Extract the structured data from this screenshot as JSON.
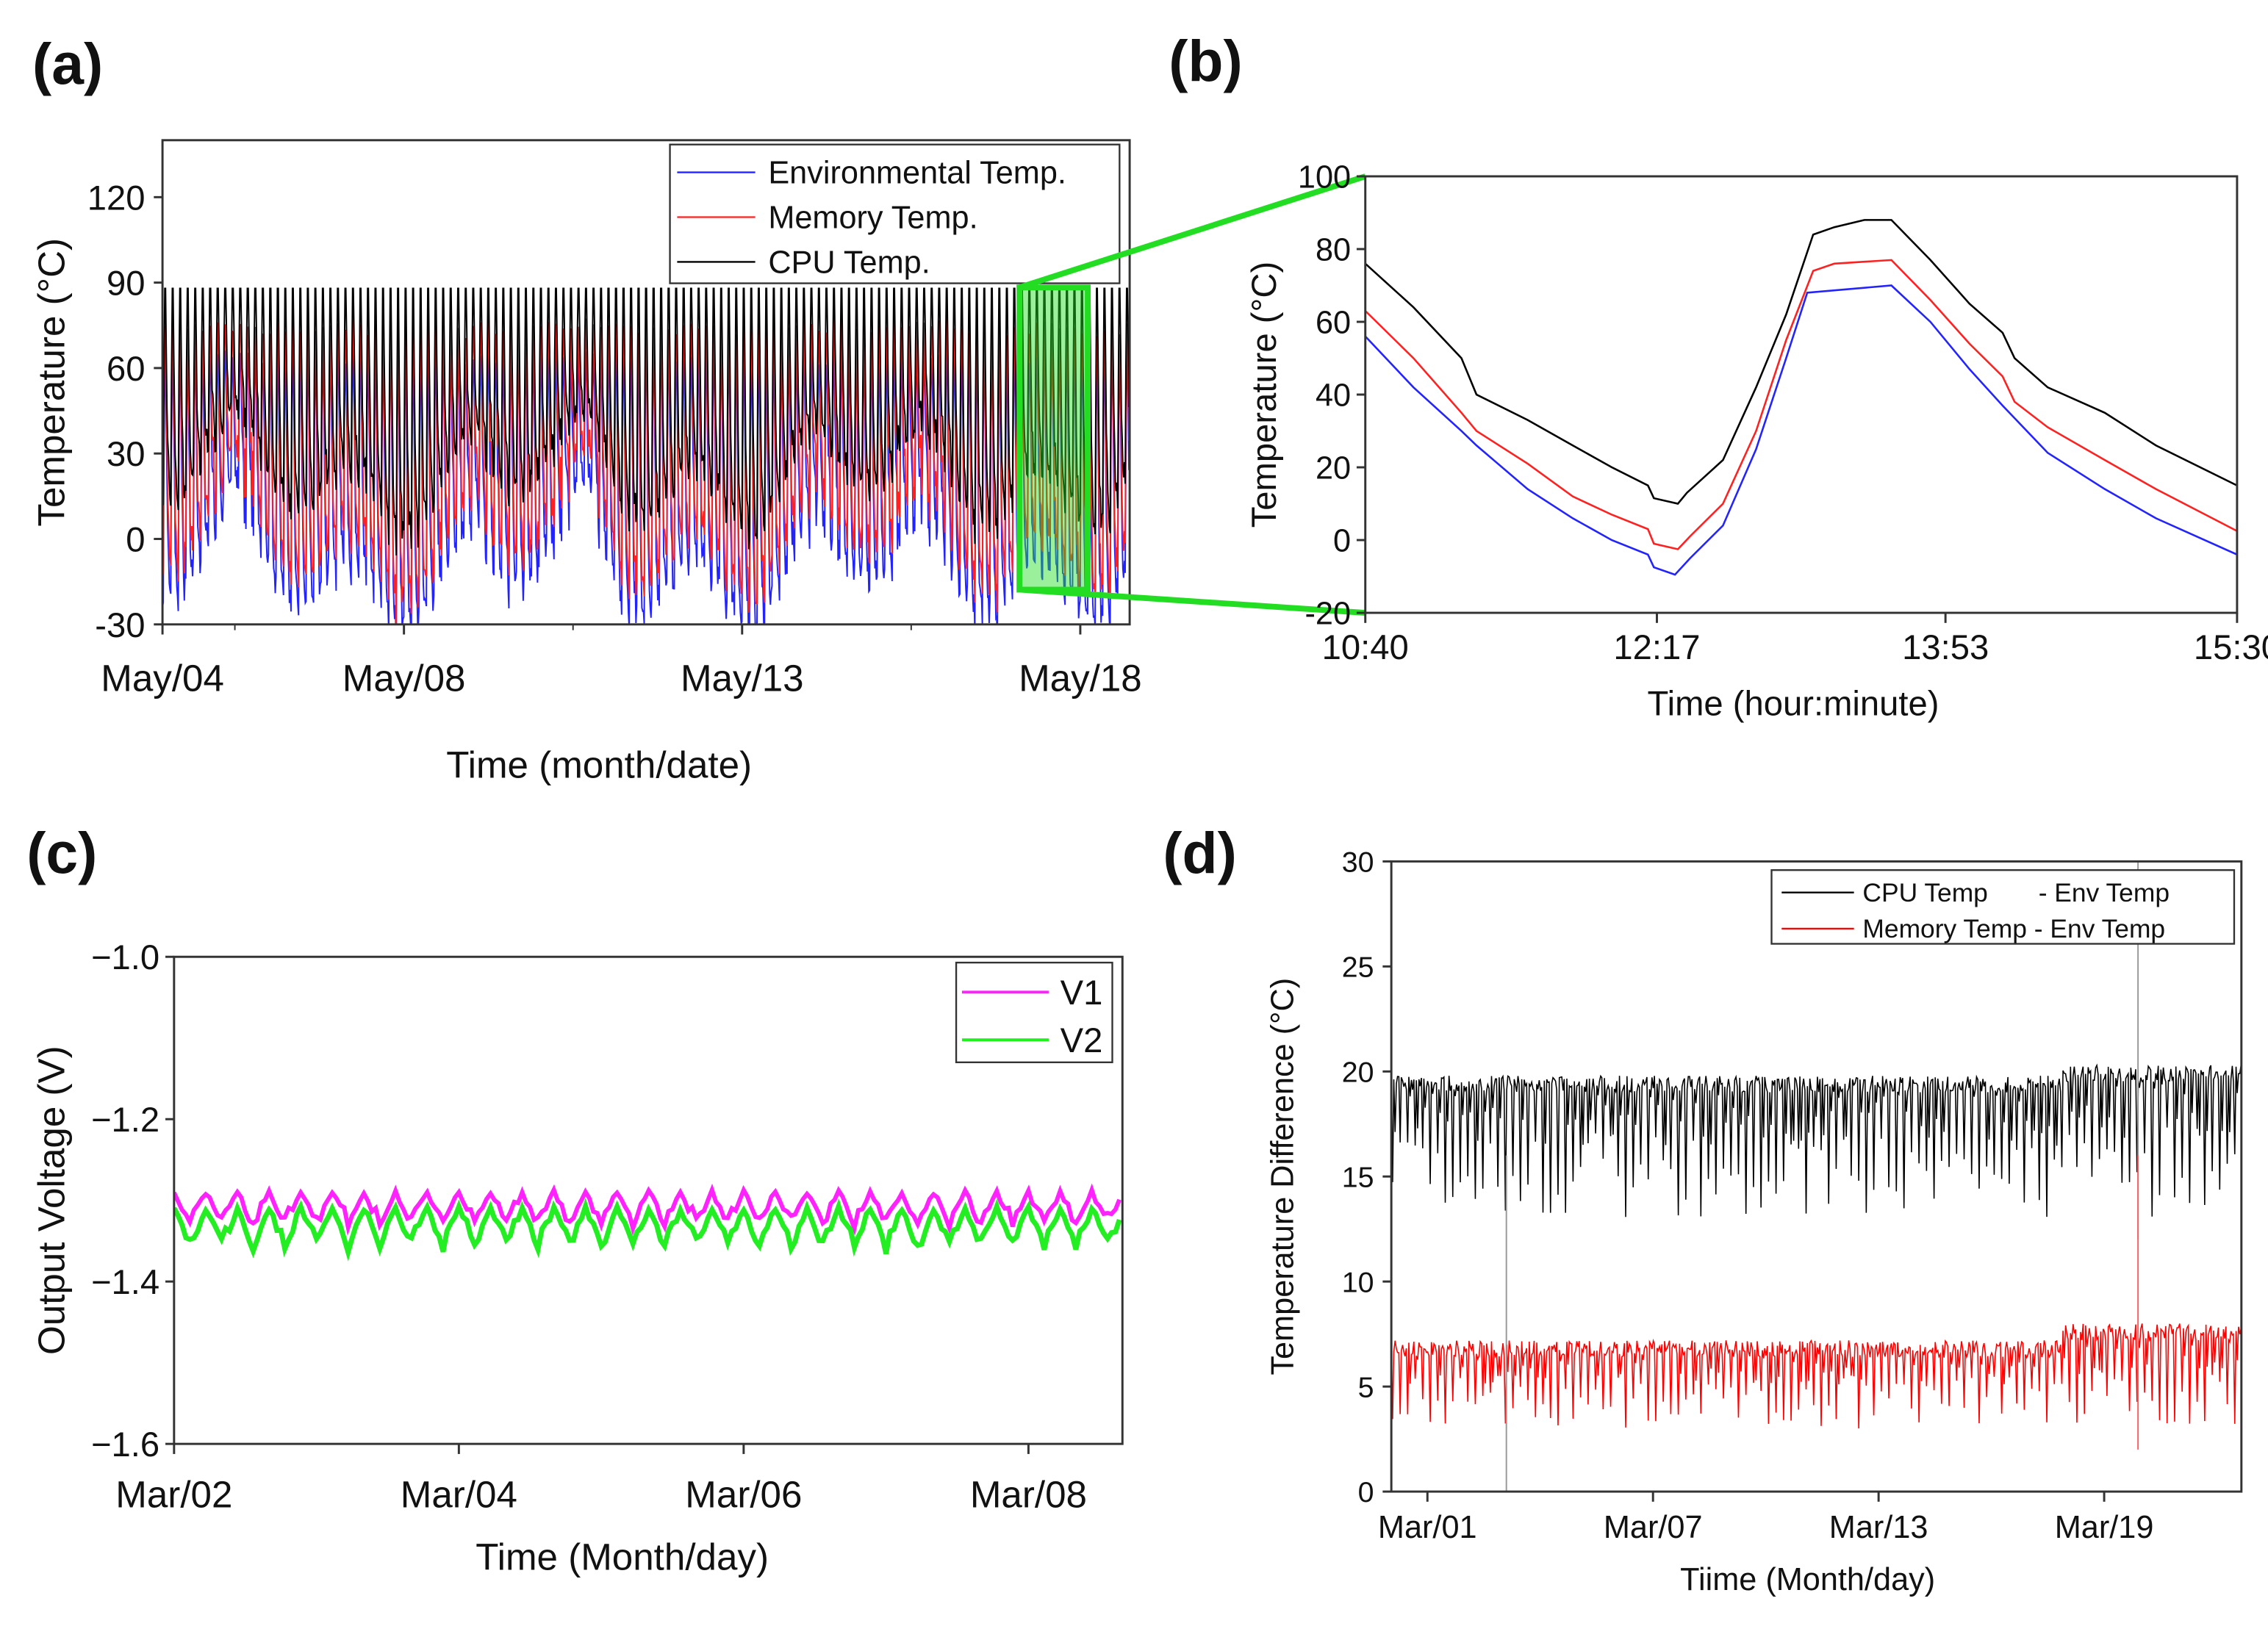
{
  "panel_labels": [
    "(a)",
    "(b)",
    "(c)",
    "(d)"
  ],
  "chart_data": [
    {
      "id": "a",
      "type": "line",
      "xlabel": "Time (month/date)",
      "ylabel": "Temperature (°C)",
      "xlim": [
        4.43,
        18.73
      ],
      "ylim": [
        -30,
        140
      ],
      "yticks": [
        -30,
        0,
        30,
        60,
        90,
        120
      ],
      "xticks": [
        {
          "v": 4.43,
          "label": "May/04"
        },
        {
          "v": 8,
          "label": "May/08"
        },
        {
          "v": 13,
          "label": "May/13"
        },
        {
          "v": 18,
          "label": "May/18"
        }
      ],
      "x_minor_ticks": [
        5.5,
        10.5,
        15.5
      ],
      "legend": "top-right",
      "series": [
        {
          "name": "Environmental Temp.",
          "color": "#2323ff",
          "peak": 70,
          "trough": -18
        },
        {
          "name": "Memory Temp.",
          "color": "#ff2020",
          "peak": 77,
          "trough": -5
        },
        {
          "name": "CPU Temp.",
          "color": "#000000",
          "peak": 88,
          "trough": 10
        }
      ],
      "cycles_per_day": 9,
      "highlight": {
        "x": [
          17.1,
          18.11
        ],
        "y": [
          -17.8,
          88.3
        ],
        "color": "#22dd22"
      }
    },
    {
      "id": "b",
      "type": "line",
      "xlabel": "Time (hour:minute)",
      "ylabel": "Temperature (°C)",
      "xlim": [
        640,
        930
      ],
      "ylim": [
        -20,
        100
      ],
      "yticks": [
        -20,
        0,
        20,
        40,
        60,
        80,
        100
      ],
      "xticks": [
        {
          "v": 640,
          "label": "10:40"
        },
        {
          "v": 737,
          "label": "12:17"
        },
        {
          "v": 833,
          "label": "13:53"
        },
        {
          "v": 930,
          "label": "15:30"
        }
      ],
      "x_unit": "minutes since 00:00",
      "series": [
        {
          "name": "CPU Temp.",
          "color": "#000000",
          "points": [
            [
              640,
              76
            ],
            [
              656,
              64
            ],
            [
              672,
              50
            ],
            [
              677,
              40
            ],
            [
              694,
              33
            ],
            [
              709,
              26
            ],
            [
              722,
              20
            ],
            [
              734,
              15
            ],
            [
              736,
              11.5
            ],
            [
              744,
              10
            ],
            [
              747,
              13
            ],
            [
              759,
              22
            ],
            [
              770,
              42
            ],
            [
              780,
              62
            ],
            [
              789,
              84
            ],
            [
              796,
              86
            ],
            [
              806,
              88
            ],
            [
              815,
              88
            ],
            [
              828,
              77
            ],
            [
              841,
              65
            ],
            [
              852,
              57
            ],
            [
              856,
              50
            ],
            [
              867,
              42
            ],
            [
              886,
              35
            ],
            [
              903,
              26
            ],
            [
              930,
              15
            ]
          ]
        },
        {
          "name": "Memory Temp.",
          "color": "#ff2020",
          "points": [
            [
              640,
              63
            ],
            [
              656,
              50
            ],
            [
              672,
              35
            ],
            [
              677,
              30
            ],
            [
              694,
              21
            ],
            [
              709,
              12
            ],
            [
              722,
              7
            ],
            [
              734,
              3
            ],
            [
              736,
              -1
            ],
            [
              744,
              -2.5
            ],
            [
              748,
              1
            ],
            [
              759,
              10
            ],
            [
              770,
              30
            ],
            [
              780,
              55
            ],
            [
              789,
              74
            ],
            [
              796,
              76
            ],
            [
              815,
              77
            ],
            [
              828,
              66
            ],
            [
              841,
              54
            ],
            [
              852,
              45
            ],
            [
              856,
              38
            ],
            [
              867,
              31
            ],
            [
              886,
              22
            ],
            [
              903,
              14
            ],
            [
              930,
              2.5
            ]
          ]
        },
        {
          "name": "Environmental Temp.",
          "color": "#2323ff",
          "points": [
            [
              640,
              56
            ],
            [
              656,
              42
            ],
            [
              672,
              30
            ],
            [
              677,
              26
            ],
            [
              694,
              14
            ],
            [
              709,
              6
            ],
            [
              722,
              0
            ],
            [
              734,
              -4
            ],
            [
              736,
              -7.5
            ],
            [
              743,
              -9.5
            ],
            [
              748,
              -5
            ],
            [
              759,
              4
            ],
            [
              770,
              25
            ],
            [
              780,
              50
            ],
            [
              787,
              68
            ],
            [
              815,
              70
            ],
            [
              828,
              60
            ],
            [
              841,
              47
            ],
            [
              852,
              37
            ],
            [
              867,
              24
            ],
            [
              886,
              14
            ],
            [
              903,
              6
            ],
            [
              930,
              -4
            ]
          ]
        }
      ]
    },
    {
      "id": "c",
      "type": "line",
      "xlabel": "Time (Month/day)",
      "ylabel": "Output Voltage (V)",
      "xlim": [
        2,
        8.66
      ],
      "ylim": [
        -1.6,
        -1.0
      ],
      "yticks": [
        {
          "v": -1.6,
          "label": "−1.6"
        },
        {
          "v": -1.4,
          "label": "−1.4"
        },
        {
          "v": -1.2,
          "label": "−1.2"
        },
        {
          "v": -1.0,
          "label": "−1.0"
        }
      ],
      "xticks": [
        {
          "v": 2,
          "label": "Mar/02"
        },
        {
          "v": 4,
          "label": "Mar/04"
        },
        {
          "v": 6,
          "label": "Mar/06"
        },
        {
          "v": 8,
          "label": "Mar/08"
        }
      ],
      "legend": "top-right",
      "cycles_per_day": 4.5,
      "series": [
        {
          "name": "V1",
          "color": "#ff22ff",
          "high": -1.29,
          "low": -1.335
        },
        {
          "name": "V2",
          "color": "#22ee22",
          "high": -1.31,
          "low": -1.365
        }
      ]
    },
    {
      "id": "d",
      "type": "line",
      "xlabel": "Tiime (Month/day)",
      "ylabel": "Temperature Difference (°C)",
      "xlim": [
        0.04,
        22.65
      ],
      "ylim": [
        0,
        30
      ],
      "yticks": [
        0,
        5,
        10,
        15,
        20,
        25,
        30
      ],
      "xticks": [
        {
          "v": 1,
          "label": "Mar/01"
        },
        {
          "v": 7,
          "label": "Mar/07"
        },
        {
          "v": 13,
          "label": "Mar/13"
        },
        {
          "v": 19,
          "label": "Mar/19"
        }
      ],
      "legend": "top-right",
      "cycles_per_day": 5,
      "series": [
        {
          "name": "CPU Temp       - Env Temp",
          "color": "#000000",
          "high": 19.8,
          "low": 13,
          "high_late": 20.3
        },
        {
          "name": "Memory Temp - Env Temp",
          "color": "#ff0000",
          "high": 7.2,
          "low": 3,
          "high_late": 8
        }
      ],
      "late_shift_day": 17.9,
      "outliers": [
        {
          "day": 3.1,
          "from": 0,
          "to": 16
        },
        {
          "day": 19.9,
          "from": 12,
          "to": 30
        },
        {
          "day": 19.9,
          "from": 2,
          "to": 16
        }
      ]
    }
  ]
}
